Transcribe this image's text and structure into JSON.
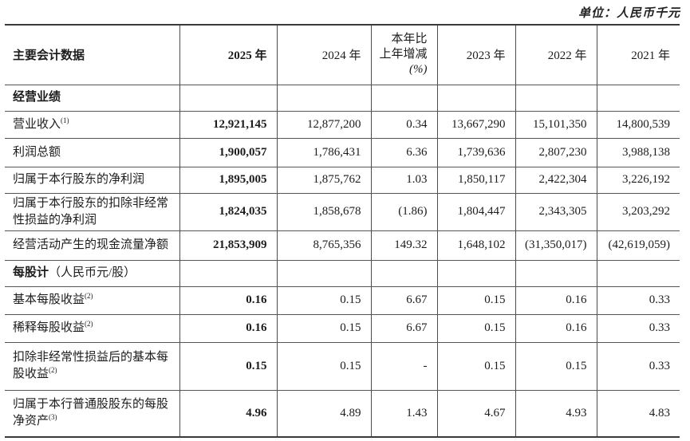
{
  "unit_note": "单位：人民币千元",
  "table": {
    "header": {
      "label": "主要会计数据",
      "columns": [
        {
          "name": "2025",
          "label": "2025 年",
          "bold": true
        },
        {
          "name": "2024",
          "label": "2024 年",
          "bold": false
        },
        {
          "name": "yoy-change",
          "lines": [
            "本年比",
            "上年增减",
            "(%)"
          ],
          "italic_line_index": 2,
          "bold": false
        },
        {
          "name": "2023",
          "label": "2023 年",
          "bold": false
        },
        {
          "name": "2022",
          "label": "2022 年",
          "bold": false
        },
        {
          "name": "2021",
          "label": "2021 年",
          "bold": false
        }
      ]
    },
    "rows": [
      {
        "type": "section",
        "label": "经营业绩"
      },
      {
        "type": "data",
        "label": "营业收入",
        "sup": "(1)",
        "values": [
          "12,921,145",
          "12,877,200",
          "0.34",
          "13,667,290",
          "15,101,350",
          "14,800,539"
        ]
      },
      {
        "type": "data",
        "label": "利润总额",
        "values": [
          "1,900,057",
          "1,786,431",
          "6.36",
          "1,739,636",
          "2,807,230",
          "3,988,138"
        ]
      },
      {
        "type": "data",
        "label": "归属于本行股东的净利润",
        "values": [
          "1,895,005",
          "1,875,762",
          "1.03",
          "1,850,117",
          "2,422,304",
          "3,226,192"
        ]
      },
      {
        "type": "data",
        "label": "归属于本行股东的扣除非经常性损益的净利润",
        "values": [
          "1,824,035",
          "1,858,678",
          "(1.86)",
          "1,804,447",
          "2,343,305",
          "3,203,292"
        ]
      },
      {
        "type": "data",
        "label": "经营活动产生的现金流量净额",
        "values": [
          "21,853,909",
          "8,765,356",
          "149.32",
          "1,648,102",
          "(31,350,017)",
          "(42,619,059)"
        ]
      },
      {
        "type": "section",
        "label": "每股计",
        "suffix": "（人民币元/股）"
      },
      {
        "type": "data",
        "label": "基本每股收益",
        "sup": "(2)",
        "values": [
          "0.16",
          "0.15",
          "6.67",
          "0.15",
          "0.16",
          "0.33"
        ]
      },
      {
        "type": "data",
        "label": "稀释每股收益",
        "sup": "(2)",
        "values": [
          "0.16",
          "0.15",
          "6.67",
          "0.15",
          "0.16",
          "0.33"
        ]
      },
      {
        "type": "data",
        "label": "扣除非经常性损益后的基本每股收益",
        "sup": "(2)",
        "values": [
          "0.15",
          "0.15",
          "-",
          "0.15",
          "0.15",
          "0.33"
        ]
      },
      {
        "type": "data",
        "label": "归属于本行普通股股东的每股净资产",
        "sup": "(3)",
        "values": [
          "4.96",
          "4.89",
          "1.43",
          "4.67",
          "4.93",
          "4.83"
        ]
      }
    ]
  }
}
